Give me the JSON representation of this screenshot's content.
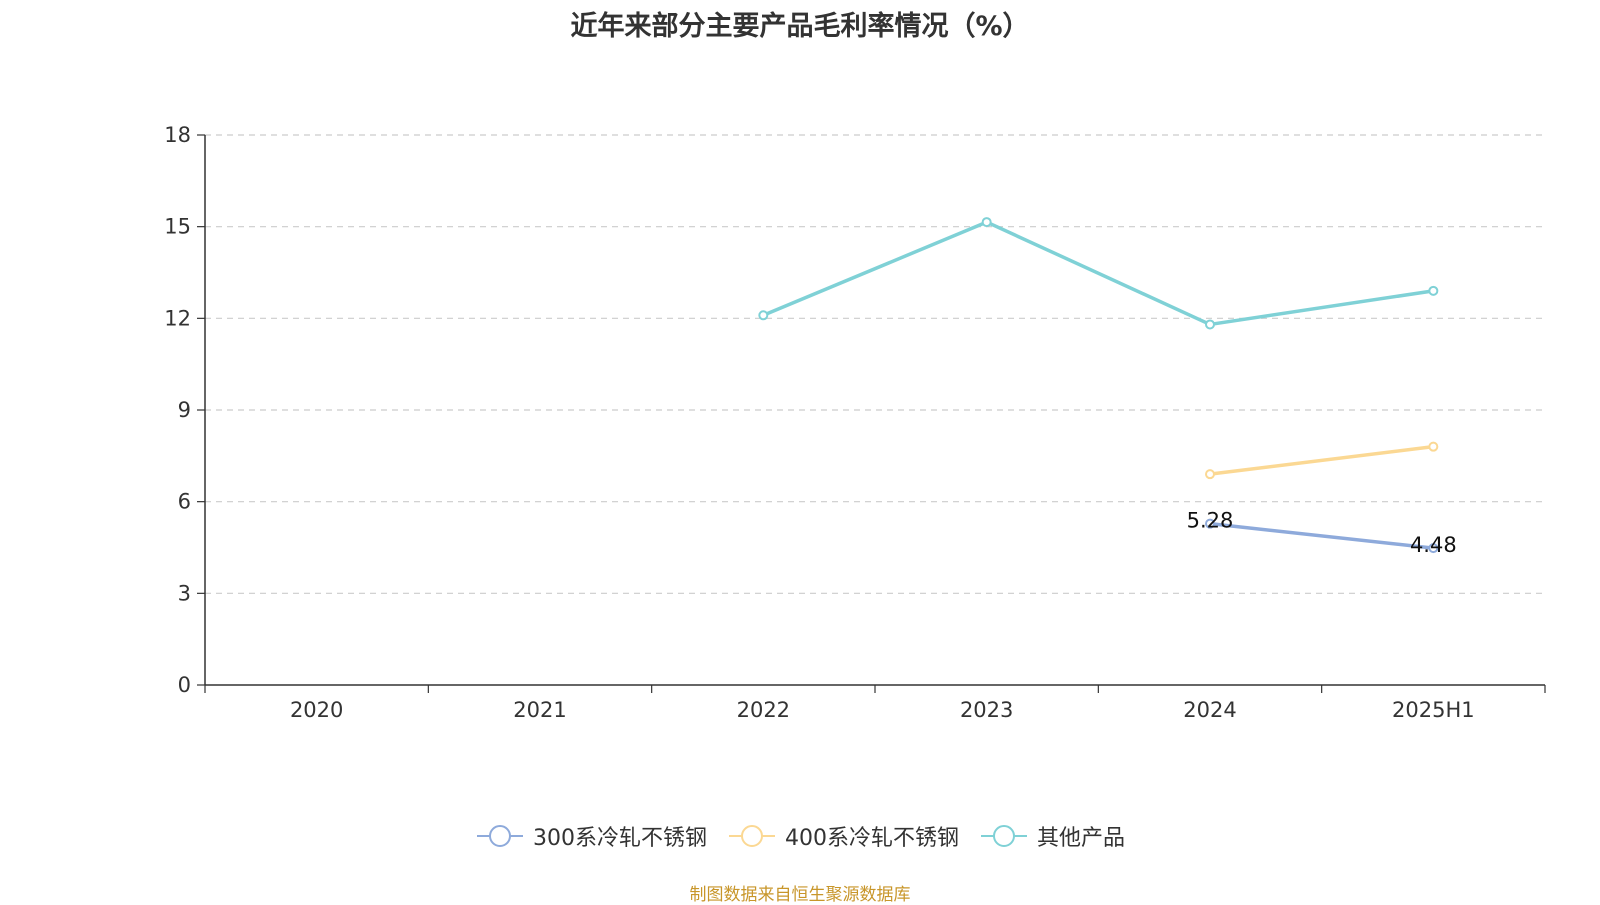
{
  "chart_data": {
    "type": "line",
    "title": "近年来部分主要产品毛利率情况（%）",
    "categories": [
      "2020",
      "2021",
      "2022",
      "2023",
      "2024",
      "2025H1"
    ],
    "ylim": [
      0,
      18
    ],
    "yticks": [
      0,
      3,
      6,
      9,
      12,
      15,
      18
    ],
    "grid": true,
    "legend_position": "bottom",
    "series": [
      {
        "name": "300系冷轧不锈钢",
        "color": "#8eaadb",
        "values": [
          null,
          null,
          null,
          null,
          5.28,
          4.48
        ],
        "labels": [
          null,
          null,
          null,
          null,
          "5.28",
          "4.48"
        ]
      },
      {
        "name": "400系冷轧不锈钢",
        "color": "#fbd893",
        "values": [
          null,
          null,
          null,
          null,
          6.9,
          7.8
        ],
        "labels": [
          null,
          null,
          null,
          null,
          null,
          null
        ]
      },
      {
        "name": "其他产品",
        "color": "#7fd1d6",
        "values": [
          null,
          null,
          12.1,
          15.15,
          11.8,
          12.9
        ],
        "labels": [
          null,
          null,
          null,
          null,
          null,
          null
        ]
      }
    ]
  },
  "source_note": "制图数据来自恒生聚源数据库"
}
